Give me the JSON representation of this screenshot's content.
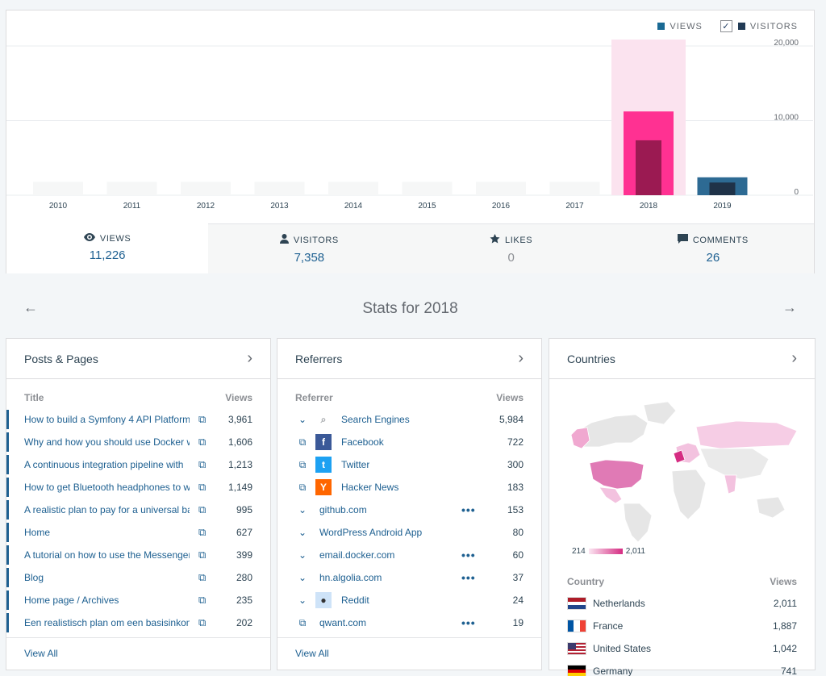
{
  "legend": {
    "views": "VIEWS",
    "visitors": "VISITORS",
    "views_color": "#1a6a94",
    "visitors_color": "#223b55"
  },
  "chart_data": {
    "type": "bar",
    "categories": [
      "2010",
      "2011",
      "2012",
      "2013",
      "2014",
      "2015",
      "2016",
      "2017",
      "2018",
      "2019"
    ],
    "series": [
      {
        "name": "VIEWS",
        "values": [
          0,
          0,
          0,
          0,
          0,
          0,
          0,
          0,
          11226,
          2400
        ]
      },
      {
        "name": "VISITORS",
        "values": [
          0,
          0,
          0,
          0,
          0,
          0,
          0,
          0,
          7358,
          1700
        ]
      }
    ],
    "yticks": [
      "20,000",
      "10,000",
      "0"
    ],
    "ylim": [
      0,
      20000
    ],
    "highlighted": "2018",
    "grid": true
  },
  "tabs": [
    {
      "label": "VIEWS",
      "value": "11,226",
      "icon": "eye-icon"
    },
    {
      "label": "VISITORS",
      "value": "7,358",
      "icon": "person-icon"
    },
    {
      "label": "LIKES",
      "value": "0",
      "icon": "star-icon"
    },
    {
      "label": "COMMENTS",
      "value": "26",
      "icon": "comment-icon"
    }
  ],
  "period": {
    "title": "Stats for 2018"
  },
  "posts": {
    "title": "Posts & Pages",
    "col_title": "Title",
    "col_views": "Views",
    "view_all": "View All",
    "items": [
      {
        "title": "How to build a Symfony 4 API Platform",
        "views": "3,961"
      },
      {
        "title": "Why and how you should use Docker wi",
        "views": "1,606"
      },
      {
        "title": "A continuous integration pipeline with",
        "views": "1,213"
      },
      {
        "title": "How to get Bluetooth headphones to w",
        "views": "1,149"
      },
      {
        "title": "A realistic plan to pay for a universal ba",
        "views": "995"
      },
      {
        "title": "Home",
        "views": "627"
      },
      {
        "title": "A tutorial on how to use the Messenger",
        "views": "399"
      },
      {
        "title": "Blog",
        "views": "280"
      },
      {
        "title": "Home page / Archives",
        "views": "235"
      },
      {
        "title": "Een realistisch plan om een basisinkom",
        "views": "202"
      }
    ]
  },
  "referrers": {
    "title": "Referrers",
    "col_title": "Referrer",
    "col_views": "Views",
    "view_all": "View All",
    "items": [
      {
        "name": "Search Engines",
        "views": "5,984"
      },
      {
        "name": "Facebook",
        "views": "722"
      },
      {
        "name": "Twitter",
        "views": "300"
      },
      {
        "name": "Hacker News",
        "views": "183"
      },
      {
        "name": "github.com",
        "views": "153"
      },
      {
        "name": "WordPress Android App",
        "views": "80"
      },
      {
        "name": "email.docker.com",
        "views": "60"
      },
      {
        "name": "hn.algolia.com",
        "views": "37"
      },
      {
        "name": "Reddit",
        "views": "24"
      },
      {
        "name": "qwant.com",
        "views": "19"
      }
    ]
  },
  "countries": {
    "title": "Countries",
    "scale_min": "214",
    "scale_max": "2,011",
    "col_title": "Country",
    "col_views": "Views",
    "items": [
      {
        "name": "Netherlands",
        "views": "2,011"
      },
      {
        "name": "France",
        "views": "1,887"
      },
      {
        "name": "United States",
        "views": "1,042"
      },
      {
        "name": "Germany",
        "views": "741"
      }
    ]
  }
}
